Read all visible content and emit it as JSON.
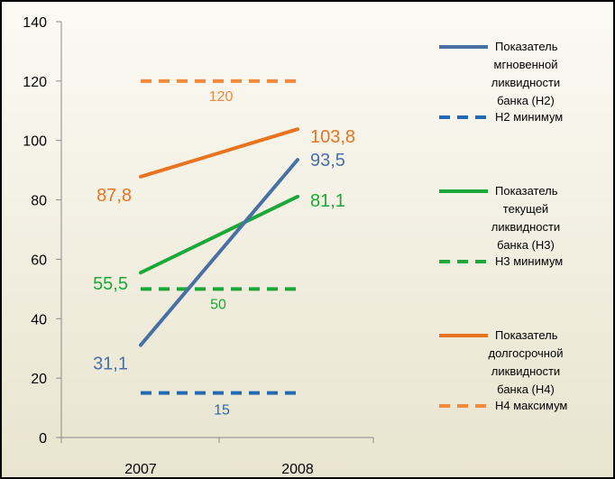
{
  "chart_data": {
    "type": "line",
    "categories": [
      "2007",
      "2008"
    ],
    "ylim": [
      0,
      140
    ],
    "yticks": [
      0,
      20,
      40,
      60,
      80,
      100,
      120,
      140
    ],
    "grid": false,
    "legend_placement": "right",
    "background_gradient": [
      "#fbfaf4",
      "#e9e4cf"
    ],
    "series": [
      {
        "name_lines": [
          "Показатель",
          "мгновенной",
          "ликвидности",
          "банка (Н2)"
        ],
        "values": [
          31.1,
          93.5
        ],
        "value_labels": [
          "31,1",
          "93,5"
        ],
        "color": "#4a6fa5",
        "style": "solid"
      },
      {
        "name_lines": [
          "Н2 минимум"
        ],
        "values": [
          15,
          15
        ],
        "value_labels": [
          "15"
        ],
        "color": "#2468b4",
        "style": "dashed"
      },
      {
        "name_lines": [
          "Показатель",
          "текущей",
          "ликвидности",
          "банка (Н3)"
        ],
        "values": [
          55.5,
          81.1
        ],
        "value_labels": [
          "55,5",
          "81,1"
        ],
        "color": "#1ca838",
        "style": "solid"
      },
      {
        "name_lines": [
          "Н3 минимум"
        ],
        "values": [
          50,
          50
        ],
        "value_labels": [
          "50"
        ],
        "color": "#1ca838",
        "style": "dashed"
      },
      {
        "name_lines": [
          "Показатель",
          "долгосрочной",
          "ликвидности",
          "банка (Н4)"
        ],
        "values": [
          87.8,
          103.8
        ],
        "value_labels": [
          "87,8",
          "103,8"
        ],
        "color": "#e8741f",
        "style": "solid"
      },
      {
        "name_lines": [
          "Н4 максимум"
        ],
        "values": [
          120,
          120
        ],
        "value_labels": [
          "120"
        ],
        "color": "#f08a3c",
        "style": "dashed"
      }
    ]
  }
}
